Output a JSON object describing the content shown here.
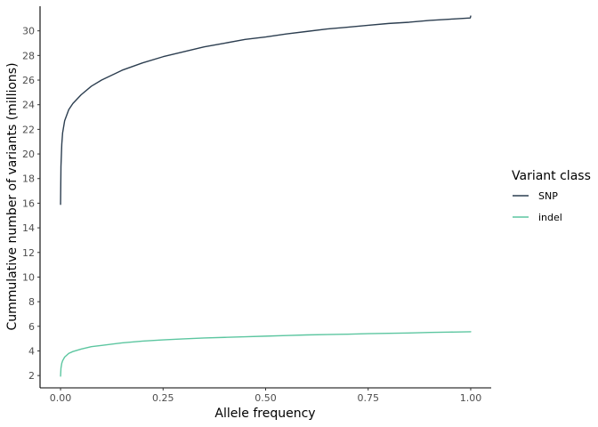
{
  "chart_data": {
    "type": "line",
    "xlabel": "Allele frequency",
    "ylabel": "Cummulative number of variants (millions)",
    "xlim": [
      -0.05,
      1.05
    ],
    "ylim": [
      1.0,
      32.0
    ],
    "x_ticks": [
      0.0,
      0.25,
      0.5,
      0.75,
      1.0
    ],
    "x_tick_labels": [
      "0.00",
      "0.25",
      "0.50",
      "0.75",
      "1.00"
    ],
    "y_ticks": [
      2,
      4,
      6,
      8,
      10,
      12,
      14,
      16,
      18,
      20,
      22,
      24,
      26,
      28,
      30
    ],
    "y_tick_labels": [
      "2",
      "4",
      "6",
      "8",
      "10",
      "12",
      "14",
      "16",
      "18",
      "20",
      "22",
      "24",
      "26",
      "28",
      "30"
    ],
    "grid": false,
    "legend": {
      "title": "Variant class",
      "placement": "right"
    },
    "series": [
      {
        "name": "SNP",
        "color": "#2c3e50",
        "x": [
          0.0,
          0.001,
          0.003,
          0.005,
          0.01,
          0.02,
          0.03,
          0.05,
          0.075,
          0.1,
          0.15,
          0.2,
          0.25,
          0.3,
          0.35,
          0.4,
          0.45,
          0.5,
          0.55,
          0.6,
          0.65,
          0.7,
          0.75,
          0.8,
          0.85,
          0.9,
          0.95,
          0.999,
          1.0
        ],
        "values": [
          15.9,
          19.0,
          20.8,
          21.7,
          22.7,
          23.6,
          24.1,
          24.8,
          25.5,
          26.0,
          26.8,
          27.4,
          27.9,
          28.3,
          28.7,
          29.0,
          29.3,
          29.5,
          29.75,
          29.95,
          30.15,
          30.3,
          30.45,
          30.6,
          30.7,
          30.85,
          30.95,
          31.05,
          31.2
        ]
      },
      {
        "name": "indel",
        "color": "#5cc6a0",
        "x": [
          0.0,
          0.001,
          0.003,
          0.005,
          0.01,
          0.02,
          0.03,
          0.05,
          0.075,
          0.1,
          0.15,
          0.2,
          0.25,
          0.3,
          0.35,
          0.4,
          0.45,
          0.5,
          0.55,
          0.6,
          0.65,
          0.7,
          0.75,
          0.8,
          0.85,
          0.9,
          0.95,
          1.0
        ],
        "values": [
          1.95,
          2.6,
          3.0,
          3.2,
          3.5,
          3.8,
          3.95,
          4.15,
          4.35,
          4.45,
          4.65,
          4.8,
          4.9,
          4.98,
          5.05,
          5.1,
          5.15,
          5.2,
          5.25,
          5.3,
          5.33,
          5.36,
          5.4,
          5.43,
          5.46,
          5.5,
          5.53,
          5.56
        ]
      }
    ]
  }
}
